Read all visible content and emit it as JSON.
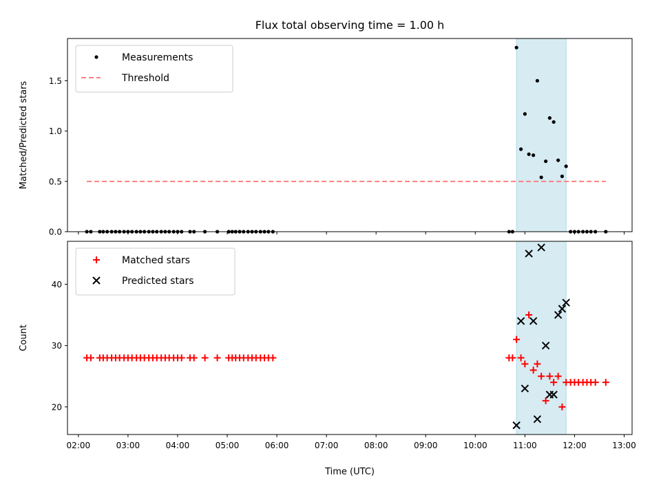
{
  "title": "Flux total observing time = 1.00 h",
  "colors": {
    "shade": "#add8e6",
    "threshold": "#ff7f7f",
    "measurements": "#000000",
    "matched": "#ff0000",
    "predicted": "#000000"
  },
  "chart_data": [
    {
      "type": "scatter",
      "ylabel": "Matched/Predicted stars",
      "xlim": [
        1.78,
        13.16
      ],
      "ylim": [
        0.0,
        1.92
      ],
      "yticks": [
        "0.0",
        "0.5",
        "1.0",
        "1.5"
      ],
      "ytick_values": [
        0.0,
        0.5,
        1.0,
        1.5
      ],
      "shaded_region": [
        10.83,
        11.83
      ],
      "legend_position": "upper-left",
      "threshold": {
        "name": "Threshold",
        "value": 0.5,
        "x_range": [
          2.17,
          12.63
        ],
        "style": "dashed"
      },
      "series": [
        {
          "name": "Measurements",
          "marker": "dot",
          "x": [
            2.17,
            2.25,
            2.43,
            2.5,
            2.58,
            2.67,
            2.75,
            2.83,
            2.92,
            3.0,
            3.08,
            3.17,
            3.25,
            3.33,
            3.42,
            3.5,
            3.58,
            3.67,
            3.75,
            3.83,
            3.92,
            4.0,
            4.08,
            4.25,
            4.33,
            4.55,
            4.8,
            5.03,
            5.1,
            5.17,
            5.25,
            5.33,
            5.42,
            5.5,
            5.58,
            5.67,
            5.75,
            5.83,
            5.92,
            10.68,
            10.75,
            10.83,
            10.92,
            11.0,
            11.08,
            11.17,
            11.25,
            11.33,
            11.42,
            11.5,
            11.58,
            11.67,
            11.75,
            11.83,
            11.92,
            12.0,
            12.08,
            12.17,
            12.25,
            12.33,
            12.42,
            12.63
          ],
          "y": [
            0,
            0,
            0,
            0,
            0,
            0,
            0,
            0,
            0,
            0,
            0,
            0,
            0,
            0,
            0,
            0,
            0,
            0,
            0,
            0,
            0,
            0,
            0,
            0,
            0,
            0,
            0,
            0,
            0,
            0,
            0,
            0,
            0,
            0,
            0,
            0,
            0,
            0,
            0,
            0,
            0,
            1.83,
            0.82,
            1.17,
            0.77,
            0.76,
            1.5,
            0.54,
            0.7,
            1.13,
            1.09,
            0.71,
            0.55,
            0.65,
            0,
            0,
            0,
            0,
            0,
            0,
            0,
            0
          ]
        }
      ]
    },
    {
      "type": "scatter",
      "xlabel": "Time (UTC)",
      "ylabel": "Count",
      "xlim": [
        1.78,
        13.16
      ],
      "ylim": [
        15.5,
        47.0
      ],
      "yticks": [
        "20",
        "30",
        "40"
      ],
      "ytick_values": [
        20,
        30,
        40
      ],
      "xticks": [
        "02:00",
        "03:00",
        "04:00",
        "05:00",
        "06:00",
        "07:00",
        "08:00",
        "09:00",
        "10:00",
        "11:00",
        "12:00",
        "13:00"
      ],
      "xtick_values": [
        2,
        3,
        4,
        5,
        6,
        7,
        8,
        9,
        10,
        11,
        12,
        13
      ],
      "shaded_region": [
        10.83,
        11.83
      ],
      "legend_position": "upper-left",
      "series": [
        {
          "name": "Matched stars",
          "marker": "plus",
          "x": [
            2.17,
            2.25,
            2.43,
            2.5,
            2.58,
            2.67,
            2.75,
            2.83,
            2.92,
            3.0,
            3.08,
            3.17,
            3.25,
            3.33,
            3.42,
            3.5,
            3.58,
            3.67,
            3.75,
            3.83,
            3.92,
            4.0,
            4.08,
            4.25,
            4.33,
            4.55,
            4.8,
            5.03,
            5.1,
            5.17,
            5.25,
            5.33,
            5.42,
            5.5,
            5.58,
            5.67,
            5.75,
            5.83,
            5.92,
            10.68,
            10.75,
            10.83,
            10.92,
            11.0,
            11.08,
            11.17,
            11.25,
            11.33,
            11.42,
            11.5,
            11.58,
            11.67,
            11.75,
            11.83,
            11.92,
            12.0,
            12.08,
            12.17,
            12.25,
            12.33,
            12.42,
            12.63
          ],
          "y": [
            28,
            28,
            28,
            28,
            28,
            28,
            28,
            28,
            28,
            28,
            28,
            28,
            28,
            28,
            28,
            28,
            28,
            28,
            28,
            28,
            28,
            28,
            28,
            28,
            28,
            28,
            28,
            28,
            28,
            28,
            28,
            28,
            28,
            28,
            28,
            28,
            28,
            28,
            28,
            28,
            28,
            31,
            28,
            27,
            35,
            26,
            27,
            25,
            21,
            25,
            24,
            25,
            20,
            24,
            24,
            24,
            24,
            24,
            24,
            24,
            24,
            24
          ]
        },
        {
          "name": "Predicted stars",
          "marker": "x",
          "x": [
            10.83,
            10.92,
            11.0,
            11.08,
            11.17,
            11.25,
            11.33,
            11.42,
            11.5,
            11.58,
            11.67,
            11.75,
            11.83
          ],
          "y": [
            17,
            34,
            23,
            45,
            34,
            18,
            46,
            30,
            22,
            22,
            35,
            36,
            37
          ]
        }
      ]
    }
  ]
}
